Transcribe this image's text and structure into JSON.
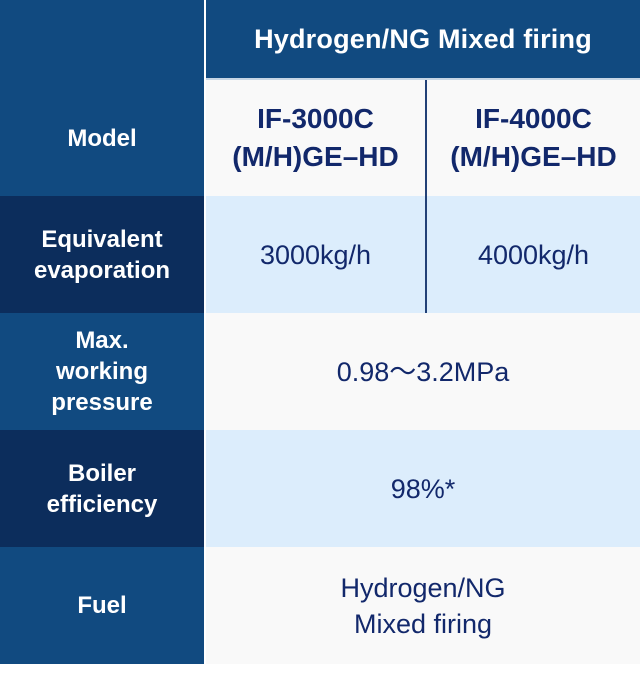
{
  "header": {
    "title": "Hydrogen/NG Mixed firing"
  },
  "rows": [
    {
      "label": "Model"
    },
    {
      "label": "Equivalent\nevaporation"
    },
    {
      "label": "Max.\nworking\npressure"
    },
    {
      "label": "Boiler\nefficiency"
    },
    {
      "label": "Fuel"
    }
  ],
  "models": {
    "col_a": "IF-3000C\n(M/H)GE–HD",
    "col_b": "IF-4000C\n(M/H)GE–HD"
  },
  "evaporation": {
    "col_a": "3000kg/h",
    "col_b": "4000kg/h"
  },
  "pressure": "0.98〜3.2MPa",
  "efficiency": "98%*",
  "fuel": "Hydrogen/NG\nMixed firing",
  "colors": {
    "header_blue": "#114a80",
    "dark_navy": "#0c2d5c",
    "text_navy": "#12286b",
    "light_blue_row": "#dcedfc",
    "white_row": "#f9f9f9"
  }
}
